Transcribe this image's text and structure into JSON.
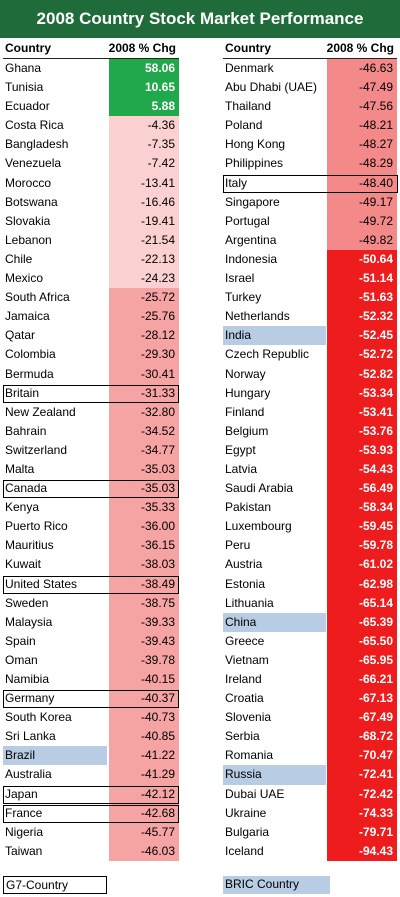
{
  "title": "2008 Country Stock Market Performance",
  "headers": {
    "country": "Country",
    "change": "2008 % Chg"
  },
  "legend": {
    "g7": "G7-Country",
    "bric": "BRIC Country"
  },
  "colors": {
    "title_bg": "#1f6b3a",
    "positive": "#21a84a",
    "bric": "#b8cce4"
  },
  "chart_data": {
    "type": "table",
    "title": "2008 Country Stock Market Performance",
    "columns": [
      "Country",
      "2008 % Chg"
    ],
    "left": [
      {
        "country": "Ghana",
        "value": "58.06",
        "v": 58.06,
        "color": "#21a84a"
      },
      {
        "country": "Tunisia",
        "value": "10.65",
        "v": 10.65,
        "color": "#21a84a"
      },
      {
        "country": "Ecuador",
        "value": "5.88",
        "v": 5.88,
        "color": "#21a84a"
      },
      {
        "country": "Costa Rica",
        "value": "-4.36",
        "v": -4.36,
        "color": "#fbd0d0"
      },
      {
        "country": "Bangladesh",
        "value": "-7.35",
        "v": -7.35,
        "color": "#fbd0d0"
      },
      {
        "country": "Venezuela",
        "value": "-7.42",
        "v": -7.42,
        "color": "#fbd0d0"
      },
      {
        "country": "Morocco",
        "value": "-13.41",
        "v": -13.41,
        "color": "#fbd0d0"
      },
      {
        "country": "Botswana",
        "value": "-16.46",
        "v": -16.46,
        "color": "#fbd0d0"
      },
      {
        "country": "Slovakia",
        "value": "-19.41",
        "v": -19.41,
        "color": "#fbd0d0"
      },
      {
        "country": "Lebanon",
        "value": "-21.54",
        "v": -21.54,
        "color": "#fbd0d0"
      },
      {
        "country": "Chile",
        "value": "-22.13",
        "v": -22.13,
        "color": "#fbd0d0"
      },
      {
        "country": "Mexico",
        "value": "-24.23",
        "v": -24.23,
        "color": "#fbd0d0"
      },
      {
        "country": "South Africa",
        "value": "-25.72",
        "v": -25.72,
        "color": "#f6a3a3"
      },
      {
        "country": "Jamaica",
        "value": "-25.76",
        "v": -25.76,
        "color": "#f6a3a3"
      },
      {
        "country": "Qatar",
        "value": "-28.12",
        "v": -28.12,
        "color": "#f6a3a3"
      },
      {
        "country": "Colombia",
        "value": "-29.30",
        "v": -29.3,
        "color": "#f6a3a3"
      },
      {
        "country": "Bermuda",
        "value": "-30.41",
        "v": -30.41,
        "color": "#f6a3a3"
      },
      {
        "country": "Britain",
        "value": "-31.33",
        "v": -31.33,
        "color": "#f6a3a3",
        "g7": true
      },
      {
        "country": "New Zealand",
        "value": "-32.80",
        "v": -32.8,
        "color": "#f6a3a3"
      },
      {
        "country": "Bahrain",
        "value": "-34.52",
        "v": -34.52,
        "color": "#f6a3a3"
      },
      {
        "country": "Switzerland",
        "value": "-34.77",
        "v": -34.77,
        "color": "#f6a3a3"
      },
      {
        "country": "Malta",
        "value": "-35.03",
        "v": -35.03,
        "color": "#f6a3a3"
      },
      {
        "country": "Canada",
        "value": "-35.03",
        "v": -35.03,
        "color": "#f6a3a3",
        "g7": true
      },
      {
        "country": "Kenya",
        "value": "-35.33",
        "v": -35.33,
        "color": "#f6a3a3"
      },
      {
        "country": "Puerto Rico",
        "value": "-36.00",
        "v": -36.0,
        "color": "#f6a3a3"
      },
      {
        "country": "Mauritius",
        "value": "-36.15",
        "v": -36.15,
        "color": "#f6a3a3"
      },
      {
        "country": "Kuwait",
        "value": "-38.03",
        "v": -38.03,
        "color": "#f6a3a3"
      },
      {
        "country": "United States",
        "value": "-38.49",
        "v": -38.49,
        "color": "#f6a3a3",
        "g7": true
      },
      {
        "country": "Sweden",
        "value": "-38.75",
        "v": -38.75,
        "color": "#f6a3a3"
      },
      {
        "country": "Malaysia",
        "value": "-39.33",
        "v": -39.33,
        "color": "#f6a3a3"
      },
      {
        "country": "Spain",
        "value": "-39.43",
        "v": -39.43,
        "color": "#f6a3a3"
      },
      {
        "country": "Oman",
        "value": "-39.78",
        "v": -39.78,
        "color": "#f6a3a3"
      },
      {
        "country": "Namibia",
        "value": "-40.15",
        "v": -40.15,
        "color": "#f6a3a3"
      },
      {
        "country": "Germany",
        "value": "-40.37",
        "v": -40.37,
        "color": "#f6a3a3",
        "g7": true
      },
      {
        "country": "South Korea",
        "value": "-40.73",
        "v": -40.73,
        "color": "#f6a3a3"
      },
      {
        "country": "Sri Lanka",
        "value": "-40.85",
        "v": -40.85,
        "color": "#f6a3a3"
      },
      {
        "country": "Brazil",
        "value": "-41.22",
        "v": -41.22,
        "color": "#f6a3a3",
        "bric": true
      },
      {
        "country": "Australia",
        "value": "-41.29",
        "v": -41.29,
        "color": "#f6a3a3"
      },
      {
        "country": "Japan",
        "value": "-42.12",
        "v": -42.12,
        "color": "#f6a3a3",
        "g7": true
      },
      {
        "country": "France",
        "value": "-42.68",
        "v": -42.68,
        "color": "#f6a3a3",
        "g7": true
      },
      {
        "country": "Nigeria",
        "value": "-45.77",
        "v": -45.77,
        "color": "#f6a3a3"
      },
      {
        "country": "Taiwan",
        "value": "-46.03",
        "v": -46.03,
        "color": "#f6a3a3"
      }
    ],
    "right": [
      {
        "country": "Denmark",
        "value": "-46.63",
        "v": -46.63,
        "color": "#f48989"
      },
      {
        "country": "Abu Dhabi (UAE)",
        "value": "-47.49",
        "v": -47.49,
        "color": "#f48989"
      },
      {
        "country": "Thailand",
        "value": "-47.56",
        "v": -47.56,
        "color": "#f48989"
      },
      {
        "country": "Poland",
        "value": "-48.21",
        "v": -48.21,
        "color": "#f48989"
      },
      {
        "country": "Hong Kong",
        "value": "-48.27",
        "v": -48.27,
        "color": "#f48989"
      },
      {
        "country": "Philippines",
        "value": "-48.29",
        "v": -48.29,
        "color": "#f48989"
      },
      {
        "country": "Italy",
        "value": "-48.40",
        "v": -48.4,
        "color": "#f48989",
        "g7": true
      },
      {
        "country": "Singapore",
        "value": "-49.17",
        "v": -49.17,
        "color": "#f48989"
      },
      {
        "country": "Portugal",
        "value": "-49.72",
        "v": -49.72,
        "color": "#f48989"
      },
      {
        "country": "Argentina",
        "value": "-49.82",
        "v": -49.82,
        "color": "#f48989"
      },
      {
        "country": "Indonesia",
        "value": "-50.64",
        "v": -50.64,
        "color": "#ee1c1c"
      },
      {
        "country": "Israel",
        "value": "-51.14",
        "v": -51.14,
        "color": "#ee1c1c"
      },
      {
        "country": "Turkey",
        "value": "-51.63",
        "v": -51.63,
        "color": "#ee1c1c"
      },
      {
        "country": "Netherlands",
        "value": "-52.32",
        "v": -52.32,
        "color": "#ee1c1c"
      },
      {
        "country": "India",
        "value": "-52.45",
        "v": -52.45,
        "color": "#ee1c1c",
        "bric": true
      },
      {
        "country": "Czech Republic",
        "value": "-52.72",
        "v": -52.72,
        "color": "#ee1c1c"
      },
      {
        "country": "Norway",
        "value": "-52.82",
        "v": -52.82,
        "color": "#ee1c1c"
      },
      {
        "country": "Hungary",
        "value": "-53.34",
        "v": -53.34,
        "color": "#ee1c1c"
      },
      {
        "country": "Finland",
        "value": "-53.41",
        "v": -53.41,
        "color": "#ee1c1c"
      },
      {
        "country": "Belgium",
        "value": "-53.76",
        "v": -53.76,
        "color": "#ee1c1c"
      },
      {
        "country": "Egypt",
        "value": "-53.93",
        "v": -53.93,
        "color": "#ee1c1c"
      },
      {
        "country": "Latvia",
        "value": "-54.43",
        "v": -54.43,
        "color": "#ee1c1c"
      },
      {
        "country": "Saudi Arabia",
        "value": "-56.49",
        "v": -56.49,
        "color": "#ee1c1c"
      },
      {
        "country": "Pakistan",
        "value": "-58.34",
        "v": -58.34,
        "color": "#ee1c1c"
      },
      {
        "country": "Luxembourg",
        "value": "-59.45",
        "v": -59.45,
        "color": "#ee1c1c"
      },
      {
        "country": "Peru",
        "value": "-59.78",
        "v": -59.78,
        "color": "#ee1c1c"
      },
      {
        "country": "Austria",
        "value": "-61.02",
        "v": -61.02,
        "color": "#ee1c1c"
      },
      {
        "country": "Estonia",
        "value": "-62.98",
        "v": -62.98,
        "color": "#ee1c1c"
      },
      {
        "country": "Lithuania",
        "value": "-65.14",
        "v": -65.14,
        "color": "#ee1c1c"
      },
      {
        "country": "China",
        "value": "-65.39",
        "v": -65.39,
        "color": "#ee1c1c",
        "bric": true
      },
      {
        "country": "Greece",
        "value": "-65.50",
        "v": -65.5,
        "color": "#ee1c1c"
      },
      {
        "country": "Vietnam",
        "value": "-65.95",
        "v": -65.95,
        "color": "#ee1c1c"
      },
      {
        "country": "Ireland",
        "value": "-66.21",
        "v": -66.21,
        "color": "#ee1c1c"
      },
      {
        "country": "Croatia",
        "value": "-67.13",
        "v": -67.13,
        "color": "#ee1c1c"
      },
      {
        "country": "Slovenia",
        "value": "-67.49",
        "v": -67.49,
        "color": "#ee1c1c"
      },
      {
        "country": "Serbia",
        "value": "-68.72",
        "v": -68.72,
        "color": "#ee1c1c"
      },
      {
        "country": "Romania",
        "value": "-70.47",
        "v": -70.47,
        "color": "#ee1c1c"
      },
      {
        "country": "Russia",
        "value": "-72.41",
        "v": -72.41,
        "color": "#ee1c1c",
        "bric": true
      },
      {
        "country": "Dubai UAE",
        "value": "-72.42",
        "v": -72.42,
        "color": "#ee1c1c"
      },
      {
        "country": "Ukraine",
        "value": "-74.33",
        "v": -74.33,
        "color": "#ee1c1c"
      },
      {
        "country": "Bulgaria",
        "value": "-79.71",
        "v": -79.71,
        "color": "#ee1c1c"
      },
      {
        "country": "Iceland",
        "value": "-94.43",
        "v": -94.43,
        "color": "#ee1c1c"
      }
    ]
  }
}
